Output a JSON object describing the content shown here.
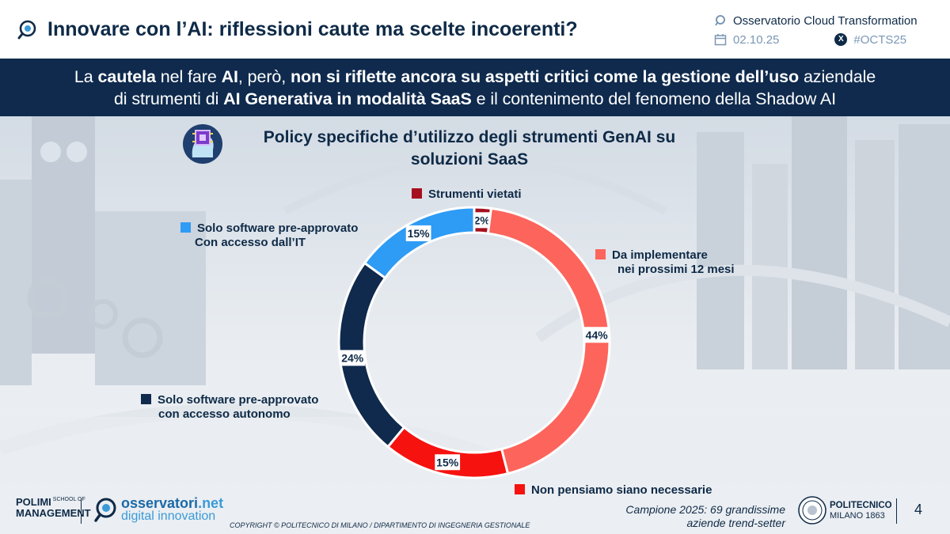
{
  "header": {
    "title": "Innovare con l’AI: riflessioni caute ma scelte incoerenti?",
    "observatory": "Osservatorio Cloud Transformation",
    "date": "02.10.25",
    "hashtag": "#OCTS25"
  },
  "banner": {
    "line1": [
      {
        "text": "La ",
        "bold": false
      },
      {
        "text": "cautela",
        "bold": true
      },
      {
        "text": " nel fare ",
        "bold": false
      },
      {
        "text": "AI",
        "bold": true
      },
      {
        "text": ", però, ",
        "bold": false
      },
      {
        "text": "non si riflette ancora su aspetti critici come la gestione dell’uso",
        "bold": true
      },
      {
        "text": " aziendale",
        "bold": false
      }
    ],
    "line2": [
      {
        "text": "di strumenti di ",
        "bold": false
      },
      {
        "text": "AI Generativa in modalità SaaS",
        "bold": true
      },
      {
        "text": " e il contenimento del fenomeno della Shadow AI",
        "bold": false
      }
    ]
  },
  "chart_data": {
    "type": "pie",
    "donut": true,
    "title": "Policy specifiche d’utilizzo degli strumenti GenAI su soluzioni SaaS",
    "title_lines": [
      "Policy specifiche d’utilizzo degli strumenti GenAI su",
      "soluzioni SaaS"
    ],
    "unit": "%",
    "slices": [
      {
        "key": "vietati",
        "label": "Strumenti vietati",
        "value": 2,
        "color": "#a50f1e"
      },
      {
        "key": "impl",
        "label": "Da implementare nei prossimi 12 mesi",
        "value": 44,
        "color": "#fd645c"
      },
      {
        "key": "non",
        "label": "Non pensiamo siano necessarie",
        "value": 15,
        "color": "#f5120f"
      },
      {
        "key": "auto",
        "label": "Solo software pre-approvato con accesso autonomo",
        "value": 24,
        "color": "#0f2a4d"
      },
      {
        "key": "preit",
        "label": "Solo software pre-approvato Con accesso dall’IT",
        "value": 15,
        "color": "#2e9bf5"
      }
    ]
  },
  "legend": {
    "vietati": "Strumenti vietati",
    "impl_l1": "Da implementare",
    "impl_l2": "nei prossimi 12 mesi",
    "non": "Non pensiamo siano necessarie",
    "auto_l1": "Solo software pre-approvato",
    "auto_l2": "con accesso autonomo",
    "preit_l1": "Solo software pre-approvato",
    "preit_l2": "Con accesso dall’IT"
  },
  "footer": {
    "polimi_l1": "POLIMI",
    "polimi_l2": "MANAGEMENT",
    "polimi_small1": "SCHOOL OF",
    "osserv_name": "osservatori",
    "osserv_net": ".net",
    "osserv_sub": "digital innovation",
    "copyright": "COPYRIGHT © POLITECNICO DI MILANO / DIPARTIMENTO DI INGEGNERIA GESTIONALE",
    "sample_l1": "Campione 2025: 69 grandissime",
    "sample_l2": "aziende trend-setter",
    "poli_name": "POLITECNICO",
    "poli_sub": "MILANO 1863",
    "page": "4"
  }
}
